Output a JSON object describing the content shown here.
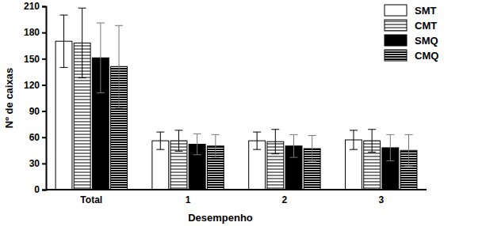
{
  "chart_data": {
    "type": "bar",
    "x_label": "Desempenho",
    "y_label": "Nº de caixas",
    "categories": [
      "Total",
      "1",
      "2",
      "3"
    ],
    "ylim": [
      0,
      210
    ],
    "yticks": [
      0,
      30,
      60,
      90,
      120,
      150,
      180,
      210
    ],
    "legend": "top-right",
    "series": [
      {
        "name": "SMT",
        "color": "#ffffff",
        "values": [
          170,
          56,
          56,
          57
        ],
        "errors": [
          30,
          10,
          10,
          11
        ]
      },
      {
        "name": "CMT",
        "color": "#ffffff",
        "values": [
          168,
          56,
          55,
          56
        ],
        "errors": [
          40,
          12,
          14,
          13
        ]
      },
      {
        "name": "SMQ",
        "color": "#000000",
        "values": [
          151,
          52,
          50,
          48
        ],
        "errors": [
          40,
          12,
          13,
          15
        ]
      },
      {
        "name": "CMQ",
        "color": "#000000",
        "values": [
          141,
          50,
          47,
          45
        ],
        "errors": [
          47,
          13,
          15,
          18
        ]
      }
    ]
  }
}
